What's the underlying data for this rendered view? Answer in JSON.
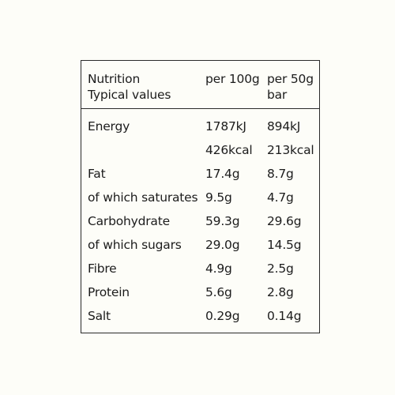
{
  "table": {
    "header": {
      "label_line1": "Nutrition",
      "label_line2": "Typical values",
      "per_100g": "per 100g",
      "per_50g_line1": "per 50g",
      "per_50g_line2": "bar"
    },
    "rows": [
      {
        "label": "Energy",
        "per_100g": "1787kJ",
        "per_50g": "894kJ"
      },
      {
        "label": "",
        "per_100g": "426kcal",
        "per_50g": "213kcal"
      },
      {
        "label": "Fat",
        "per_100g": "17.4g",
        "per_50g": "8.7g"
      },
      {
        "label": "of which saturates",
        "per_100g": "9.5g",
        "per_50g": "4.7g"
      },
      {
        "label": "Carbohydrate",
        "per_100g": "59.3g",
        "per_50g": "29.6g"
      },
      {
        "label": "of which sugars",
        "per_100g": "29.0g",
        "per_50g": "14.5g"
      },
      {
        "label": "Fibre",
        "per_100g": "4.9g",
        "per_50g": "2.5g"
      },
      {
        "label": "Protein",
        "per_100g": "5.6g",
        "per_50g": "2.8g"
      },
      {
        "label": "Salt",
        "per_100g": "0.29g",
        "per_50g": "0.14g"
      }
    ]
  }
}
